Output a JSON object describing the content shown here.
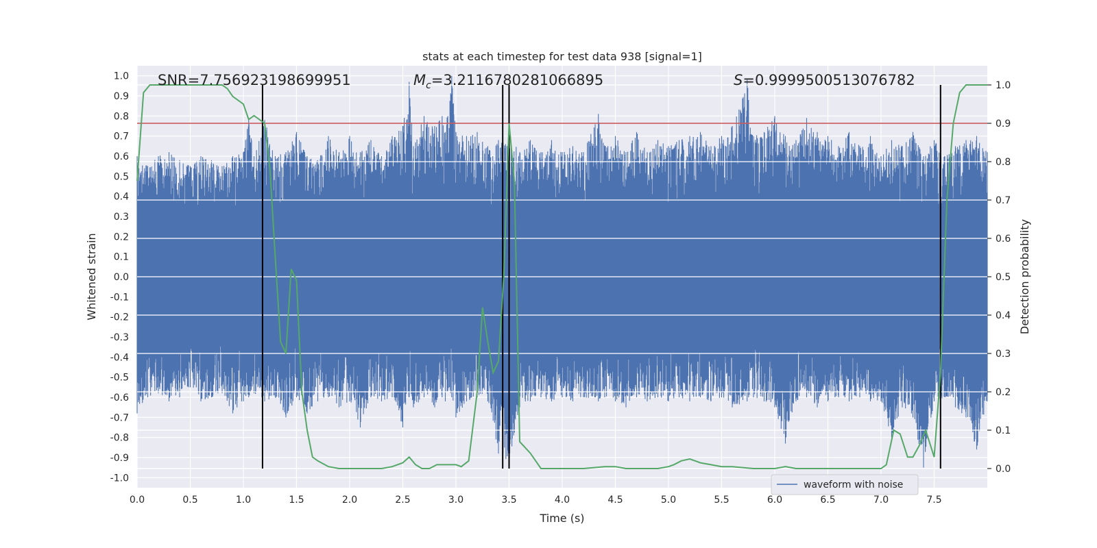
{
  "chart_data": {
    "type": "line",
    "title": "stats at each timestep for test data 938 [signal=1]",
    "xlabel": "Time (s)",
    "ylabel": "Whitened strain",
    "y2label": "Detection probability",
    "xlim": [
      0,
      8
    ],
    "ylim": [
      -1.05,
      1.05
    ],
    "y2lim": [
      -0.05,
      1.05
    ],
    "x_ticks": [
      "0.0",
      "0.5",
      "1.0",
      "1.5",
      "2.0",
      "2.5",
      "3.0",
      "3.5",
      "4.0",
      "4.5",
      "5.0",
      "5.5",
      "6.0",
      "6.5",
      "7.0",
      "7.5"
    ],
    "y_ticks": [
      "1.0",
      "0.9",
      "0.8",
      "0.7",
      "0.6",
      "0.5",
      "0.4",
      "0.3",
      "0.2",
      "0.1",
      "0.0",
      "-0.1",
      "-0.2",
      "-0.3",
      "-0.4",
      "-0.5",
      "-0.6",
      "-0.7",
      "-0.8",
      "-0.9",
      "-1.0"
    ],
    "y2_ticks": [
      "1.0",
      "0.9",
      "0.8",
      "0.7",
      "0.6",
      "0.5",
      "0.4",
      "0.3",
      "0.2",
      "0.1",
      "0.0"
    ],
    "grid": true,
    "legend_position": "lower-right",
    "annotations": {
      "snr": "SNR=7.756923198699951",
      "mc_symbol": "M",
      "mc_sub": "c",
      "mc_value": "=3.2116780281066895",
      "s_symbol": "S",
      "s_value": "=0.9999500513076782"
    },
    "threshold": {
      "y2": 0.9,
      "color": "#c44e52"
    },
    "vertical_lines_x": [
      1.18,
      3.44,
      3.5,
      7.56
    ],
    "series": [
      {
        "name": "waveform with noise",
        "axis": "left",
        "color": "#4c72b0",
        "envelope": {
          "x": [
            0.0,
            0.1,
            0.2,
            0.3,
            0.4,
            0.5,
            0.6,
            0.7,
            0.8,
            0.9,
            1.0,
            1.05,
            1.1,
            1.2,
            1.3,
            1.4,
            1.5,
            1.6,
            1.7,
            1.8,
            1.9,
            2.0,
            2.1,
            2.2,
            2.3,
            2.4,
            2.5,
            2.56,
            2.6,
            2.7,
            2.8,
            2.87,
            2.9,
            2.96,
            3.0,
            3.1,
            3.2,
            3.3,
            3.4,
            3.5,
            3.6,
            3.7,
            3.8,
            3.9,
            4.0,
            4.1,
            4.2,
            4.34,
            4.4,
            4.5,
            4.6,
            4.7,
            4.8,
            4.9,
            5.0,
            5.1,
            5.2,
            5.3,
            5.4,
            5.5,
            5.6,
            5.74,
            5.8,
            5.9,
            6.0,
            6.1,
            6.2,
            6.3,
            6.4,
            6.5,
            6.6,
            6.7,
            6.8,
            6.9,
            7.0,
            7.1,
            7.2,
            7.3,
            7.4,
            7.5,
            7.6,
            7.7,
            7.8,
            7.9,
            8.0
          ],
          "max": [
            0.6,
            0.55,
            0.6,
            0.62,
            0.58,
            0.55,
            0.6,
            0.58,
            0.55,
            0.6,
            0.62,
            0.79,
            0.6,
            0.78,
            0.6,
            0.62,
            0.72,
            0.6,
            0.58,
            0.7,
            0.62,
            0.7,
            0.62,
            0.68,
            0.6,
            0.7,
            0.75,
            0.97,
            0.65,
            0.8,
            0.75,
            0.8,
            0.72,
            1.0,
            0.72,
            0.7,
            0.72,
            0.65,
            0.68,
            0.7,
            0.62,
            0.68,
            0.62,
            0.68,
            0.62,
            0.65,
            0.62,
            0.81,
            0.65,
            0.7,
            0.62,
            0.72,
            0.62,
            0.68,
            0.65,
            0.68,
            0.7,
            0.72,
            0.65,
            0.7,
            0.75,
            0.98,
            0.7,
            0.72,
            0.8,
            0.7,
            0.68,
            0.79,
            0.72,
            0.7,
            0.65,
            0.72,
            0.65,
            0.7,
            0.6,
            0.68,
            0.65,
            0.72,
            0.6,
            0.68,
            0.6,
            0.65,
            0.68,
            0.7,
            0.62
          ],
          "min": [
            -0.68,
            -0.6,
            -0.58,
            -0.62,
            -0.6,
            -0.55,
            -0.62,
            -0.6,
            -0.58,
            -0.68,
            -0.62,
            -0.6,
            -0.58,
            -0.62,
            -0.6,
            -0.7,
            -0.6,
            -0.68,
            -0.62,
            -0.6,
            -0.65,
            -0.62,
            -0.75,
            -0.6,
            -0.62,
            -0.6,
            -0.75,
            -0.6,
            -0.65,
            -0.6,
            -0.65,
            -0.6,
            -0.62,
            -0.6,
            -0.7,
            -0.62,
            -0.6,
            -0.62,
            -0.88,
            -0.92,
            -0.65,
            -0.62,
            -0.6,
            -0.62,
            -0.6,
            -0.62,
            -0.6,
            -0.62,
            -0.6,
            -0.62,
            -0.65,
            -0.6,
            -0.62,
            -0.6,
            -0.62,
            -0.6,
            -0.62,
            -0.6,
            -0.62,
            -0.6,
            -0.65,
            -0.62,
            -0.6,
            -0.62,
            -0.65,
            -0.83,
            -0.62,
            -0.6,
            -0.65,
            -0.62,
            -0.6,
            -0.62,
            -0.6,
            -0.62,
            -0.62,
            -0.8,
            -0.65,
            -0.7,
            -0.95,
            -0.62,
            -0.6,
            -0.65,
            -0.7,
            -0.86,
            -0.62
          ]
        }
      },
      {
        "name": "detection probability",
        "axis": "right",
        "color": "#55a868",
        "x": [
          0.0,
          0.06,
          0.12,
          0.2,
          0.3,
          0.4,
          0.5,
          0.6,
          0.7,
          0.8,
          0.85,
          0.9,
          1.0,
          1.05,
          1.1,
          1.15,
          1.2,
          1.25,
          1.3,
          1.35,
          1.4,
          1.45,
          1.5,
          1.55,
          1.6,
          1.65,
          1.7,
          1.8,
          1.9,
          2.0,
          2.2,
          2.3,
          2.4,
          2.5,
          2.56,
          2.62,
          2.68,
          2.75,
          2.82,
          2.9,
          3.0,
          3.05,
          3.12,
          3.2,
          3.25,
          3.3,
          3.35,
          3.4,
          3.45,
          3.5,
          3.55,
          3.6,
          3.7,
          3.8,
          3.9,
          4.0,
          4.2,
          4.4,
          4.5,
          4.6,
          4.8,
          4.9,
          5.0,
          5.05,
          5.12,
          5.2,
          5.3,
          5.4,
          5.5,
          5.6,
          5.8,
          6.0,
          6.1,
          6.2,
          6.4,
          6.6,
          6.8,
          7.0,
          7.05,
          7.12,
          7.18,
          7.25,
          7.3,
          7.36,
          7.42,
          7.5,
          7.56,
          7.62,
          7.68,
          7.74,
          7.8,
          8.0
        ],
        "y": [
          0.75,
          0.98,
          1.0,
          1.0,
          1.0,
          1.0,
          1.0,
          1.0,
          1.0,
          1.0,
          0.99,
          0.97,
          0.95,
          0.91,
          0.92,
          0.91,
          0.9,
          0.78,
          0.55,
          0.33,
          0.3,
          0.52,
          0.49,
          0.2,
          0.1,
          0.03,
          0.02,
          0.005,
          0.0,
          0.0,
          0.0,
          0.0,
          0.005,
          0.015,
          0.03,
          0.01,
          0.0,
          0.0,
          0.01,
          0.01,
          0.01,
          0.005,
          0.02,
          0.2,
          0.42,
          0.33,
          0.25,
          0.28,
          0.5,
          0.9,
          0.75,
          0.07,
          0.04,
          0.0,
          0.0,
          0.0,
          0.0,
          0.005,
          0.005,
          0.0,
          0.0,
          0.0,
          0.005,
          0.01,
          0.02,
          0.025,
          0.015,
          0.01,
          0.005,
          0.005,
          0.0,
          0.0,
          0.005,
          0.0,
          0.0,
          0.0,
          0.0,
          0.0,
          0.01,
          0.1,
          0.09,
          0.03,
          0.03,
          0.06,
          0.1,
          0.03,
          0.25,
          0.7,
          0.9,
          0.98,
          1.0,
          1.0
        ]
      }
    ]
  }
}
